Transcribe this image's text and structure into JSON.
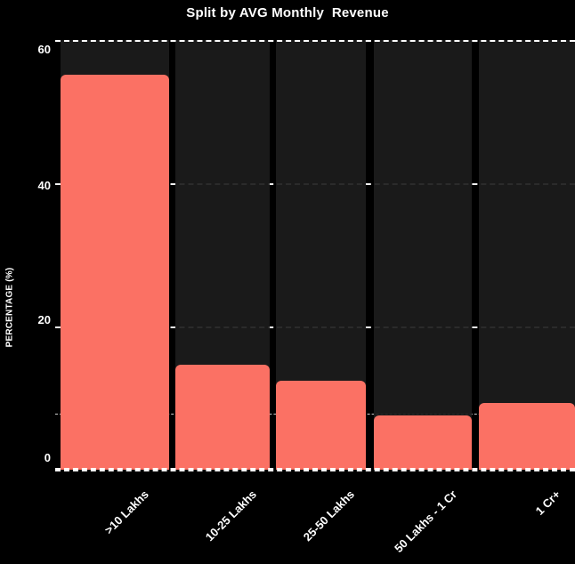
{
  "chart_data": {
    "type": "bar",
    "title": "Split by AVG Monthly  Revenue",
    "ylabel": "PERCENTAGE (%)",
    "xlabel": "",
    "categories": [
      ">10 Lakhs",
      "10-25 Lakhs",
      "25-50 Lakhs",
      "50 Lakhs - 1 Cr",
      "1 Cr+"
    ],
    "values": [
      55.1,
      14.7,
      12.4,
      7.6,
      9.3
    ],
    "yticks": [
      0,
      20,
      40,
      60
    ],
    "ylim": [
      0,
      60
    ],
    "reference_line": 7.8,
    "grid": "dashed horizontal gridlines at each y tick",
    "legend": "none",
    "colors": {
      "bar": "#FB7164",
      "band": "#1C1C1C",
      "background": "#000000",
      "text": "#FFFFFF"
    }
  }
}
